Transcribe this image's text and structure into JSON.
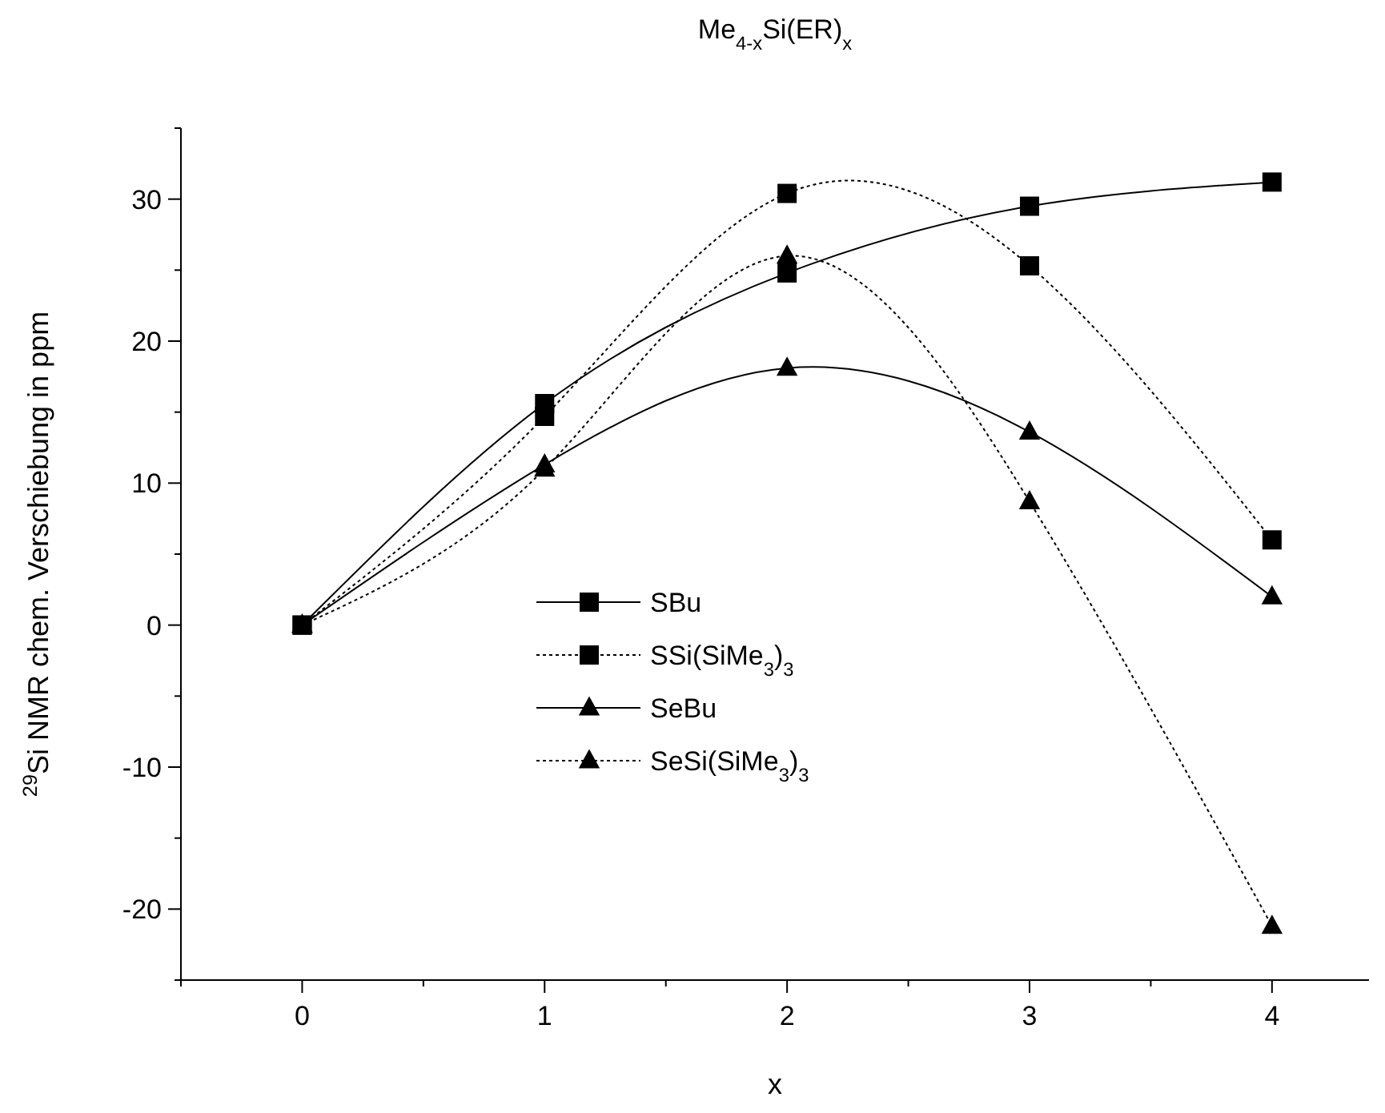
{
  "chart_data": {
    "type": "line",
    "title": "Me$_{4-x}$Si(ER)$_{x}$",
    "xlabel": "x",
    "ylabel": "$^{29}$Si NMR chem. Verschiebung in ppm",
    "x": [
      0,
      1,
      2,
      3,
      4
    ],
    "xlim": [
      -0.5,
      4.4
    ],
    "xticks": [
      {
        "value": -0.5,
        "label": null
      },
      0,
      {
        "value": 0.5,
        "label": null
      },
      1,
      {
        "value": 1.5,
        "label": null
      },
      2,
      {
        "value": 2.5,
        "label": null
      },
      3,
      {
        "value": 3.5,
        "label": null
      },
      4
    ],
    "ylim": [
      -25,
      35
    ],
    "yticks": [
      {
        "value": -25,
        "label": null
      },
      -20,
      {
        "value": -15,
        "label": null
      },
      -10,
      {
        "value": -5,
        "label": null
      },
      0,
      {
        "value": 5,
        "label": null
      },
      10,
      {
        "value": 15,
        "label": null
      },
      20,
      {
        "value": 25,
        "label": null
      },
      30,
      {
        "value": 35,
        "label": null
      }
    ],
    "grid": false,
    "legend": "left",
    "series": [
      {
        "name": "SBu",
        "color": "#000000",
        "marker": "square",
        "line_style": "solid",
        "values": [
          0,
          15.6,
          24.8,
          29.5,
          31.2
        ]
      },
      {
        "name": "SSi(SiMe$_{3}$)$_{3}$",
        "color": "#000000",
        "marker": "square",
        "line_style": "dotted",
        "values": [
          0,
          14.7,
          30.4,
          25.3,
          6.0
        ]
      },
      {
        "name": "SeBu",
        "color": "#000000",
        "marker": "triangle",
        "line_style": "solid",
        "values": [
          0,
          11.3,
          18.1,
          13.6,
          2.0
        ]
      },
      {
        "name": "SeSi(SiMe$_{3}$)$_{3}$",
        "color": "#000000",
        "marker": "triangle",
        "line_style": "dotted",
        "values": [
          0,
          11.0,
          26.0,
          8.7,
          -21.2
        ]
      }
    ]
  }
}
